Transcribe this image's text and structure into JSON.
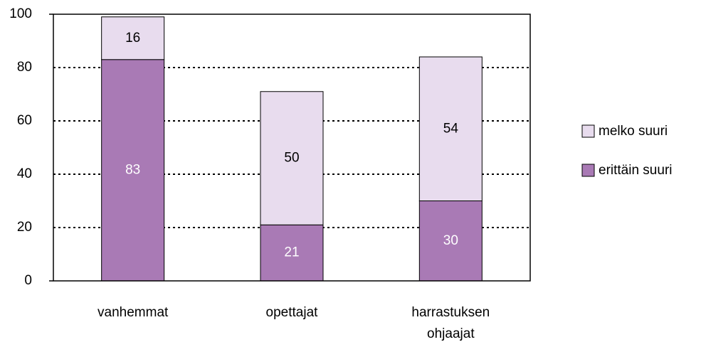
{
  "chart_data": {
    "type": "stacked_bar",
    "categories": [
      "vanhemmat",
      "opettajat",
      "harrastuksen ohjaajat"
    ],
    "series": [
      {
        "name": "erittäin suuri",
        "color": "#a97ab5",
        "label_color": "#ffffff",
        "values": [
          83,
          21,
          30
        ]
      },
      {
        "name": "melko suuri",
        "color": "#e8dcee",
        "label_color": "#000000",
        "values": [
          16,
          50,
          54
        ]
      }
    ],
    "ylim": [
      0,
      100
    ],
    "yticks": [
      0,
      20,
      40,
      60,
      80,
      100
    ],
    "grid": true
  }
}
